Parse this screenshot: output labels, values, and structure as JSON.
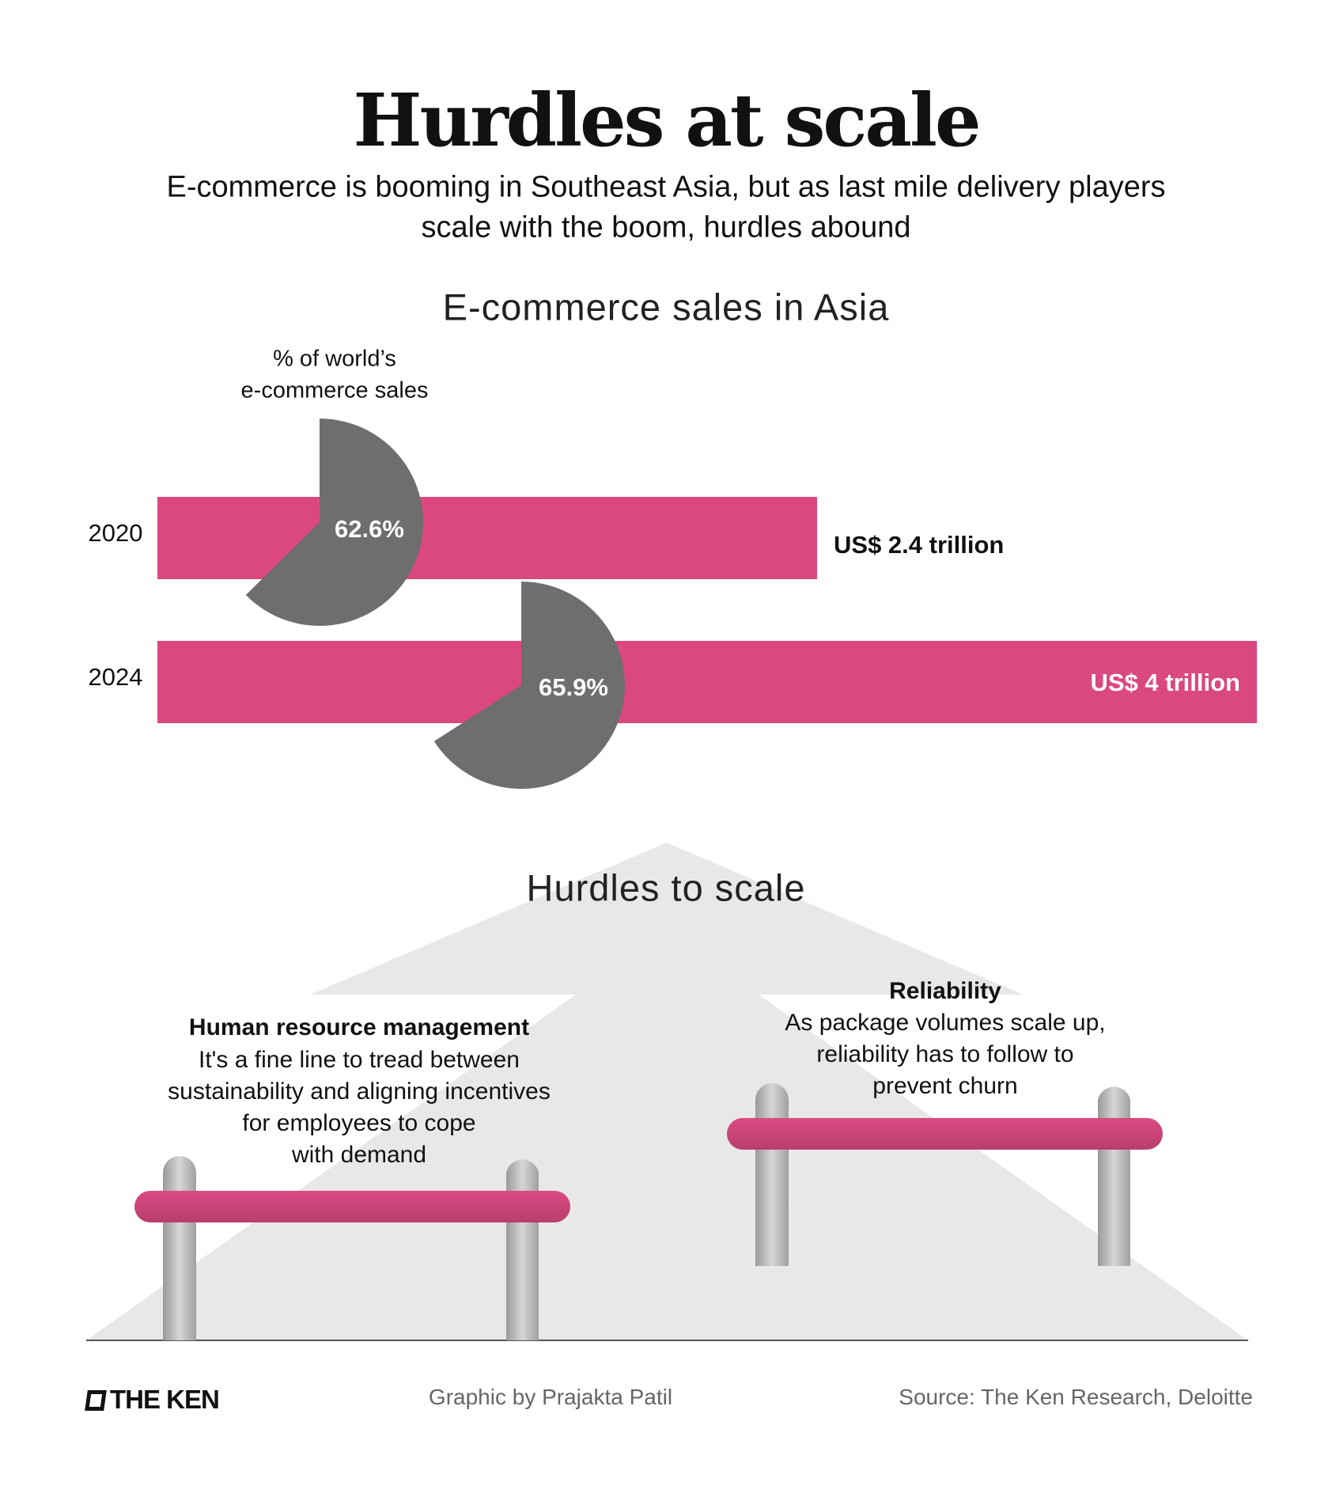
{
  "header": {
    "title": "Hurdles at scale",
    "subtitle_lines": [
      "E-commerce is booming in Southeast Asia, but as last mile delivery players",
      "scale with the boom, hurdles abound"
    ]
  },
  "chart_data": {
    "type": "bar",
    "title": "E-commerce sales in Asia",
    "categories": [
      "2020",
      "2024"
    ],
    "values": [
      2.4,
      4.0
    ],
    "unit": "US$ trillion",
    "value_labels": [
      "US$ 2.4 trillion",
      "US$ 4 trillion"
    ],
    "pie_overlay": {
      "label_lines": [
        "% of world’s",
        "e-commerce sales"
      ],
      "values": [
        62.6,
        65.9
      ],
      "value_labels": [
        "62.6%",
        "65.9%"
      ]
    },
    "colors": {
      "bar": "#DB4880",
      "pie": "#6E6E6E"
    }
  },
  "hurdles": {
    "title": "Hurdles to scale",
    "items": [
      {
        "heading": "Human resource management",
        "lines": [
          "It's a fine line to tread between",
          "sustainability and aligning incentives",
          "for employees to cope",
          "with demand"
        ]
      },
      {
        "heading": "Reliability",
        "lines": [
          "As package volumes scale up,",
          "reliability has to follow to",
          "prevent churn"
        ]
      }
    ],
    "colors": {
      "bar": "#D4467E",
      "arrow": "#E8E8E8",
      "post": "#B5B5B5"
    }
  },
  "footer": {
    "logo": "THE KEN",
    "credit": "Graphic by Prajakta Patil",
    "source": "Source: The Ken Research, Deloitte"
  }
}
